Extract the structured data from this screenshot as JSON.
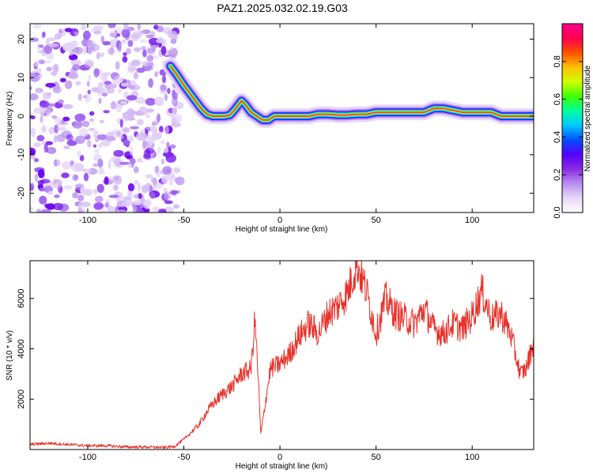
{
  "title": "PAZ1.2025.032.02.19.G03",
  "chart_data": [
    {
      "type": "heatmap",
      "xlabel": "Height of straight line (km)",
      "ylabel": "Frequency (Hz)",
      "xlim": [
        -130,
        132
      ],
      "ylim": [
        -25,
        24
      ],
      "xticks": [
        -100,
        -50,
        0,
        50,
        100
      ],
      "yticks": [
        -20,
        -10,
        0,
        10,
        20
      ],
      "colorbar": {
        "label": "Normalized spectral amplitude",
        "range": [
          0,
          1
        ],
        "ticks": [
          0.0,
          0.2,
          0.4,
          0.6,
          0.8
        ],
        "colors": [
          "#ffffff",
          "#e8d6f7",
          "#b98ef0",
          "#8a2be2",
          "#5500ff",
          "#0050ff",
          "#00c8ff",
          "#00ffa0",
          "#40ff00",
          "#d0ff00",
          "#ffc000",
          "#ff5000",
          "#ff0050",
          "#ff0090"
        ]
      },
      "noise_region_x": [
        -130,
        -55
      ],
      "signal_track": {
        "x": [
          -57,
          -54,
          -50,
          -47,
          -44,
          -41,
          -38,
          -35,
          -32,
          -29,
          -26,
          -23,
          -20,
          -18,
          -15,
          -12,
          -9,
          -6,
          -3,
          0,
          5,
          10,
          15,
          20,
          25,
          30,
          35,
          40,
          45,
          50,
          55,
          60,
          65,
          70,
          75,
          80,
          85,
          90,
          95,
          100,
          105,
          110,
          115,
          120,
          125,
          132
        ],
        "y": [
          13,
          11,
          8,
          6,
          4,
          2,
          0.5,
          0,
          0,
          0,
          0.3,
          2,
          4,
          3,
          1,
          0,
          -1,
          -1,
          0,
          0,
          0,
          0,
          0,
          0.5,
          0.5,
          0.3,
          0.3,
          0.5,
          0.5,
          1,
          1,
          1,
          1,
          1,
          1,
          2,
          2,
          1.5,
          1,
          1,
          1,
          1,
          0,
          0,
          0,
          0
        ]
      }
    },
    {
      "type": "line",
      "xlabel": "Height of straight line (km)",
      "ylabel": "SNR (10 * v/v)",
      "xlim": [
        -130,
        132
      ],
      "ylim": [
        0,
        7500
      ],
      "xticks": [
        -100,
        -50,
        0,
        50,
        100
      ],
      "yticks": [
        2000,
        4000,
        6000
      ],
      "color": "#e8312a",
      "series": [
        {
          "x": [
            -130,
            -120,
            -110,
            -100,
            -90,
            -80,
            -70,
            -60,
            -55,
            -50,
            -46,
            -42,
            -38,
            -35,
            -30,
            -25,
            -20,
            -15,
            -13,
            -11,
            -10,
            -5,
            0,
            5,
            10,
            15,
            20,
            25,
            30,
            35,
            38,
            40,
            45,
            50,
            55,
            60,
            65,
            70,
            75,
            80,
            85,
            90,
            95,
            100,
            105,
            110,
            115,
            120,
            125,
            128,
            132
          ],
          "y": [
            200,
            250,
            200,
            150,
            150,
            100,
            100,
            80,
            120,
            400,
            700,
            1000,
            1500,
            1800,
            2200,
            2500,
            3000,
            3200,
            5200,
            2400,
            600,
            3200,
            3400,
            3800,
            4500,
            5000,
            4600,
            5400,
            5700,
            6200,
            6900,
            7400,
            6300,
            4600,
            6000,
            5400,
            5200,
            5000,
            5600,
            4800,
            4600,
            5000,
            4800,
            5300,
            6300,
            5200,
            5400,
            4600,
            3000,
            3200,
            4300
          ]
        }
      ]
    }
  ]
}
